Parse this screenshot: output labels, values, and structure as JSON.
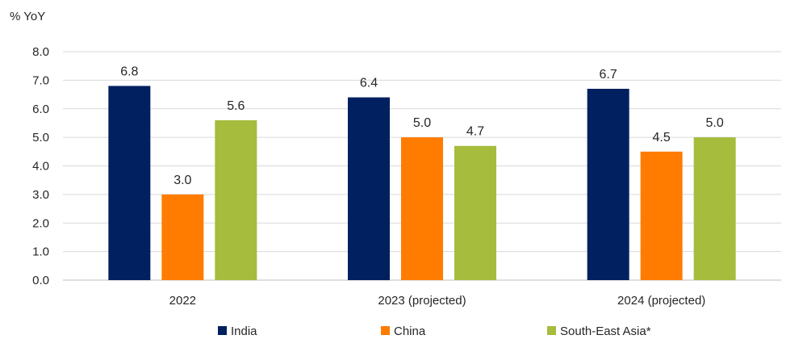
{
  "chart_data": {
    "type": "bar",
    "ylabel": "% YoY",
    "xlabel": "",
    "title": "",
    "ylim": [
      0,
      8
    ],
    "yticks": [
      0,
      1,
      2,
      3,
      4,
      5,
      6,
      7,
      8
    ],
    "ytick_labels": [
      "0.0",
      "1.0",
      "2.0",
      "3.0",
      "4.0",
      "5.0",
      "6.0",
      "7.0",
      "8.0"
    ],
    "grid": true,
    "legend_position": "bottom",
    "categories": [
      "2022",
      "2023 (projected)",
      "2024 (projected)"
    ],
    "series": [
      {
        "name": "India",
        "color": "#002060",
        "values": [
          6.8,
          6.4,
          6.7
        ],
        "labels": [
          "6.8",
          "6.4",
          "6.7"
        ]
      },
      {
        "name": "China",
        "color": "#FF7C00",
        "values": [
          3.0,
          5.0,
          4.5
        ],
        "labels": [
          "3.0",
          "5.0",
          "4.5"
        ]
      },
      {
        "name": "South-East Asia*",
        "color": "#A5BC3D",
        "values": [
          5.6,
          4.7,
          5.0
        ],
        "labels": [
          "5.6",
          "4.7",
          "5.0"
        ]
      }
    ]
  }
}
